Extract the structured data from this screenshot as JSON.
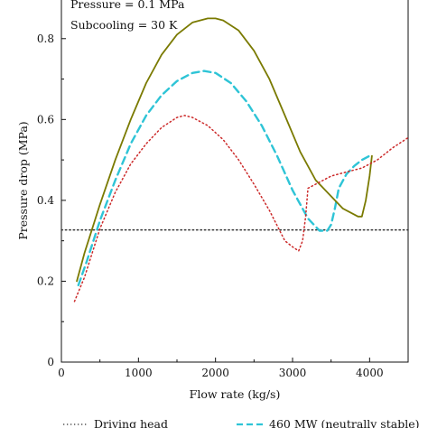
{
  "chart_data": {
    "type": "line",
    "xlabel": "Flow rate (kg/s)",
    "ylabel": "Pressure drop (MPa)",
    "xlim": [
      0,
      4500
    ],
    "ylim": [
      0,
      0.9
    ],
    "xticks": [
      "0",
      "1000",
      "2000",
      "3000",
      "4000"
    ],
    "xtick_values": [
      0,
      1000,
      2000,
      3000,
      4000
    ],
    "yticks": [
      "0",
      "0.2",
      "0.4",
      "0.6",
      "0.8"
    ],
    "ytick_values": [
      0,
      0.2,
      0.4,
      0.6,
      0.8
    ],
    "annotations": [
      "Pressure = 0.1 MPa",
      "Subcooling = 30 K"
    ],
    "legend_placement": "bottom",
    "series": [
      {
        "name": "Driving head",
        "style": "dotted",
        "color": "#333333",
        "x": [
          0,
          4500
        ],
        "y": [
          0.327,
          0.327
        ]
      },
      {
        "name": "460 MW (neutrally stable)",
        "style": "dashed",
        "color": "#2ec4d6",
        "x": [
          220,
          330,
          500,
          700,
          900,
          1100,
          1300,
          1500,
          1700,
          1850,
          2000,
          2200,
          2400,
          2600,
          2800,
          3000,
          3200,
          3350,
          3450,
          3500,
          3550,
          3600,
          3700,
          3800,
          3900,
          4000
        ],
        "y": [
          0.19,
          0.25,
          0.35,
          0.45,
          0.54,
          0.61,
          0.66,
          0.695,
          0.715,
          0.72,
          0.715,
          0.69,
          0.645,
          0.585,
          0.51,
          0.425,
          0.355,
          0.325,
          0.325,
          0.34,
          0.38,
          0.43,
          0.465,
          0.485,
          0.5,
          0.51
        ]
      },
      {
        "name": "",
        "style": "solid",
        "color": "#7a7a00",
        "x": [
          200,
          300,
          500,
          700,
          900,
          1100,
          1300,
          1500,
          1700,
          1900,
          2000,
          2100,
          2300,
          2500,
          2700,
          2900,
          3100,
          3300,
          3500,
          3650,
          3750,
          3850,
          3900,
          3950,
          4000,
          4030
        ],
        "y": [
          0.2,
          0.27,
          0.39,
          0.5,
          0.6,
          0.69,
          0.76,
          0.81,
          0.84,
          0.85,
          0.85,
          0.845,
          0.82,
          0.77,
          0.7,
          0.61,
          0.52,
          0.45,
          0.41,
          0.38,
          0.37,
          0.36,
          0.36,
          0.4,
          0.46,
          0.51
        ]
      },
      {
        "name": "",
        "style": "dotted",
        "color": "#cc2a2a",
        "x": [
          170,
          300,
          500,
          700,
          900,
          1100,
          1300,
          1500,
          1600,
          1700,
          1900,
          2100,
          2300,
          2500,
          2700,
          2900,
          3000,
          3080,
          3130,
          3170,
          3200,
          3300,
          3500,
          3700,
          3900,
          4100,
          4300,
          4500
        ],
        "y": [
          0.15,
          0.21,
          0.33,
          0.42,
          0.49,
          0.54,
          0.58,
          0.605,
          0.61,
          0.605,
          0.585,
          0.55,
          0.5,
          0.44,
          0.375,
          0.3,
          0.285,
          0.275,
          0.3,
          0.36,
          0.43,
          0.44,
          0.46,
          0.47,
          0.48,
          0.5,
          0.53,
          0.555
        ]
      }
    ]
  }
}
